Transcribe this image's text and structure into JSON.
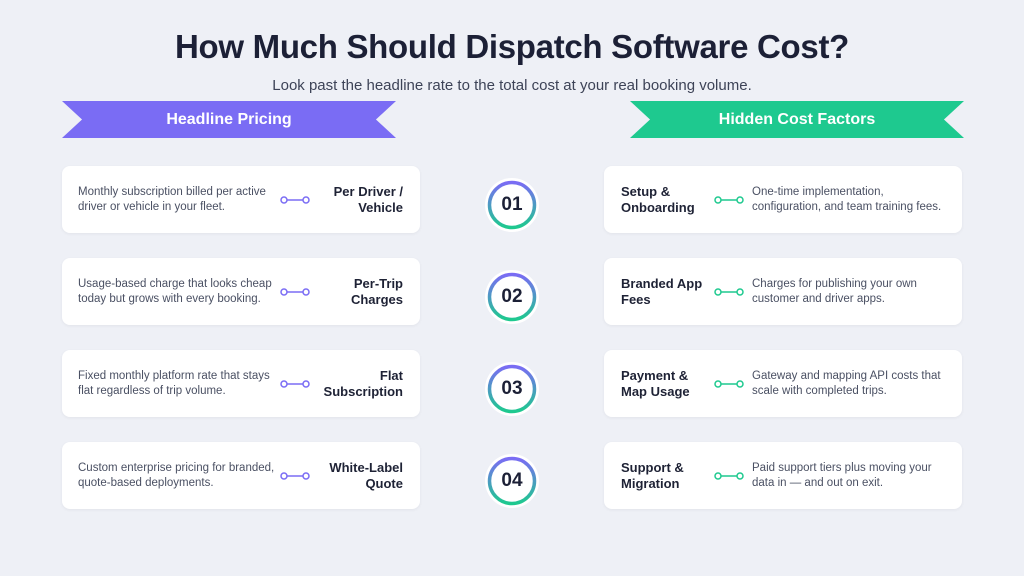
{
  "header": {
    "title": "How Much Should Dispatch Software Cost?",
    "subtitle": "Look past the headline rate to the total cost at your real booking volume."
  },
  "colors": {
    "left_accent": "#7a6cf4",
    "right_accent": "#1ec98f",
    "background": "#eef0f6",
    "card": "#ffffff"
  },
  "left_column": {
    "heading": "Headline Pricing",
    "items": [
      {
        "label": "Per Driver / Vehicle",
        "description": "Monthly subscription billed per active driver or vehicle in your fleet."
      },
      {
        "label": "Per-Trip Charges",
        "description": "Usage-based charge that looks cheap today but grows with every booking."
      },
      {
        "label": "Flat Subscription",
        "description": "Fixed monthly platform rate that stays flat regardless of trip volume."
      },
      {
        "label": "White-Label Quote",
        "description": "Custom enterprise pricing for branded, quote-based deployments."
      }
    ]
  },
  "right_column": {
    "heading": "Hidden Cost Factors",
    "items": [
      {
        "label": "Setup & Onboarding",
        "description": "One-time implementation, configuration, and team training fees."
      },
      {
        "label": "Branded App Fees",
        "description": "Charges for publishing your own customer and driver apps."
      },
      {
        "label": "Payment & Map Usage",
        "description": "Gateway and mapping API costs that scale with completed trips."
      },
      {
        "label": "Support & Migration",
        "description": "Paid support tiers plus moving your data in — and out on exit."
      }
    ]
  },
  "steps": [
    "01",
    "02",
    "03",
    "04"
  ],
  "icons": {
    "connector": "link-connector-icon"
  }
}
